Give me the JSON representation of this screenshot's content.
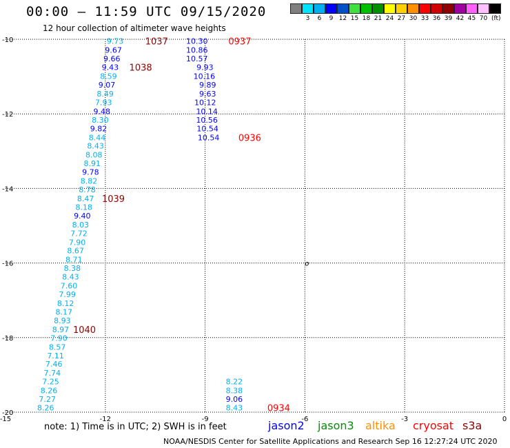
{
  "header": {
    "title": "00:00 – 11:59 UTC 09/15/2020",
    "subtitle": "12 hour collection of altimeter wave heights"
  },
  "colorbar": {
    "unit": "(ft)",
    "bins": [
      {
        "color": "#808080",
        "label": ""
      },
      {
        "color": "#00e5ff",
        "label": "3"
      },
      {
        "color": "#00b0f0",
        "label": "6"
      },
      {
        "color": "#0000ff",
        "label": "9"
      },
      {
        "color": "#0050c8",
        "label": "12"
      },
      {
        "color": "#40e040",
        "label": "15"
      },
      {
        "color": "#00c000",
        "label": "18"
      },
      {
        "color": "#009000",
        "label": "21"
      },
      {
        "color": "#ffff00",
        "label": "24"
      },
      {
        "color": "#ffd000",
        "label": "27"
      },
      {
        "color": "#ff9000",
        "label": "30"
      },
      {
        "color": "#ff0000",
        "label": "33"
      },
      {
        "color": "#d00000",
        "label": "36"
      },
      {
        "color": "#900000",
        "label": "39"
      },
      {
        "color": "#a000a0",
        "label": "42"
      },
      {
        "color": "#ff60ff",
        "label": "45"
      },
      {
        "color": "#ffc0ff",
        "label": "70"
      },
      {
        "color": "#000000",
        "label": ""
      }
    ]
  },
  "map": {
    "lon_ticks": [
      {
        "value": -15,
        "label": "-15"
      },
      {
        "value": -12,
        "label": "-12"
      },
      {
        "value": -9,
        "label": "-9"
      },
      {
        "value": -6,
        "label": "-6"
      },
      {
        "value": -3,
        "label": "-3"
      },
      {
        "value": 0,
        "label": "0"
      }
    ],
    "lat_ticks": [
      {
        "value": -10,
        "label": "-10"
      },
      {
        "value": -12,
        "label": "-12"
      },
      {
        "value": -14,
        "label": "-14"
      },
      {
        "value": -16,
        "label": "-16"
      },
      {
        "value": -18,
        "label": "-18"
      },
      {
        "value": -20,
        "label": "-20"
      }
    ],
    "island_label": "o",
    "observations": [
      {
        "lon": -11.45,
        "lat": -10.05,
        "text": "9.73",
        "color": "#00b0f0"
      },
      {
        "lon": -11.5,
        "lat": -10.29,
        "text": "9.67",
        "color": "#0000ff"
      },
      {
        "lon": -11.55,
        "lat": -10.52,
        "text": "9.66",
        "color": "#0000ff"
      },
      {
        "lon": -11.6,
        "lat": -10.75,
        "text": "9.43",
        "color": "#0000ff"
      },
      {
        "lon": -11.65,
        "lat": -10.99,
        "text": "8.59",
        "color": "#00b0f0"
      },
      {
        "lon": -11.7,
        "lat": -11.22,
        "text": "9.07",
        "color": "#0000ff"
      },
      {
        "lon": -11.75,
        "lat": -11.46,
        "text": "8.49",
        "color": "#00b0f0"
      },
      {
        "lon": -11.8,
        "lat": -11.69,
        "text": "7.93",
        "color": "#00b0f0"
      },
      {
        "lon": -11.85,
        "lat": -11.93,
        "text": "9.48",
        "color": "#0000ff"
      },
      {
        "lon": -11.9,
        "lat": -12.16,
        "text": "8.30",
        "color": "#00b0f0"
      },
      {
        "lon": -11.95,
        "lat": -12.39,
        "text": "9.82",
        "color": "#0000ff"
      },
      {
        "lon": -11.99,
        "lat": -12.63,
        "text": "8.44",
        "color": "#00b0f0"
      },
      {
        "lon": -12.04,
        "lat": -12.86,
        "text": "8.43",
        "color": "#00b0f0"
      },
      {
        "lon": -12.09,
        "lat": -13.1,
        "text": "8.08",
        "color": "#00b0f0"
      },
      {
        "lon": -12.14,
        "lat": -13.33,
        "text": "8.91",
        "color": "#00b0f0"
      },
      {
        "lon": -12.19,
        "lat": -13.56,
        "text": "9.78",
        "color": "#0000ff"
      },
      {
        "lon": -12.24,
        "lat": -13.8,
        "text": "8.82",
        "color": "#00b0f0"
      },
      {
        "lon": -12.29,
        "lat": -14.03,
        "text": "8.78",
        "color": "#00b0f0"
      },
      {
        "lon": -12.34,
        "lat": -14.27,
        "text": "8.47",
        "color": "#00b0f0"
      },
      {
        "lon": -12.39,
        "lat": -14.5,
        "text": "8.18",
        "color": "#00b0f0"
      },
      {
        "lon": -12.44,
        "lat": -14.73,
        "text": "9.40",
        "color": "#0000ff"
      },
      {
        "lon": -12.49,
        "lat": -14.97,
        "text": "8.03",
        "color": "#00b0f0"
      },
      {
        "lon": -12.54,
        "lat": -15.2,
        "text": "7.72",
        "color": "#00b0f0"
      },
      {
        "lon": -12.59,
        "lat": -15.44,
        "text": "7.90",
        "color": "#00b0f0"
      },
      {
        "lon": -12.64,
        "lat": -15.67,
        "text": "8.67",
        "color": "#00b0f0"
      },
      {
        "lon": -12.69,
        "lat": -15.91,
        "text": "8.71",
        "color": "#00b0f0"
      },
      {
        "lon": -12.74,
        "lat": -16.14,
        "text": "8.38",
        "color": "#00b0f0"
      },
      {
        "lon": -12.79,
        "lat": -16.37,
        "text": "8.43",
        "color": "#00b0f0"
      },
      {
        "lon": -12.84,
        "lat": -16.61,
        "text": "7.60",
        "color": "#00b0f0"
      },
      {
        "lon": -12.89,
        "lat": -16.84,
        "text": "7.99",
        "color": "#00b0f0"
      },
      {
        "lon": -12.94,
        "lat": -17.08,
        "text": "8.12",
        "color": "#00b0f0"
      },
      {
        "lon": -12.99,
        "lat": -17.31,
        "text": "8.17",
        "color": "#00b0f0"
      },
      {
        "lon": -13.04,
        "lat": -17.54,
        "text": "8.93",
        "color": "#00b0f0"
      },
      {
        "lon": -13.09,
        "lat": -17.78,
        "text": "8.97",
        "color": "#00b0f0"
      },
      {
        "lon": -13.14,
        "lat": -18.01,
        "text": "7.90",
        "color": "#00b0f0"
      },
      {
        "lon": -13.19,
        "lat": -18.25,
        "text": "8.57",
        "color": "#00b0f0"
      },
      {
        "lon": -13.24,
        "lat": -18.48,
        "text": "7.11",
        "color": "#00b0f0"
      },
      {
        "lon": -13.29,
        "lat": -18.71,
        "text": "7.46",
        "color": "#00b0f0"
      },
      {
        "lon": -13.34,
        "lat": -18.95,
        "text": "7.74",
        "color": "#00b0f0"
      },
      {
        "lon": -13.39,
        "lat": -19.18,
        "text": "7.25",
        "color": "#00b0f0"
      },
      {
        "lon": -13.44,
        "lat": -19.42,
        "text": "8.26",
        "color": "#00b0f0"
      },
      {
        "lon": -13.49,
        "lat": -19.65,
        "text": "7.27",
        "color": "#00b0f0"
      },
      {
        "lon": -13.54,
        "lat": -19.88,
        "text": "8.26",
        "color": "#00b0f0"
      },
      {
        "lon": -8.92,
        "lat": -10.05,
        "text": "10.30",
        "color": "#0000ff"
      },
      {
        "lon": -8.92,
        "lat": -10.29,
        "text": "10.86",
        "color": "#0000ff"
      },
      {
        "lon": -8.92,
        "lat": -10.52,
        "text": "10.57",
        "color": "#0000ff"
      },
      {
        "lon": -8.75,
        "lat": -10.75,
        "text": "9.93",
        "color": "#0000ff"
      },
      {
        "lon": -8.7,
        "lat": -10.99,
        "text": "10.16",
        "color": "#0000ff"
      },
      {
        "lon": -8.67,
        "lat": -11.22,
        "text": "9.89",
        "color": "#0000ff"
      },
      {
        "lon": -8.67,
        "lat": -11.46,
        "text": "9.63",
        "color": "#0000ff"
      },
      {
        "lon": -8.67,
        "lat": -11.69,
        "text": "10.12",
        "color": "#0000ff"
      },
      {
        "lon": -8.62,
        "lat": -11.93,
        "text": "10.14",
        "color": "#0000ff"
      },
      {
        "lon": -8.62,
        "lat": -12.16,
        "text": "10.56",
        "color": "#0000ff"
      },
      {
        "lon": -8.6,
        "lat": -12.39,
        "text": "10.54",
        "color": "#0000ff"
      },
      {
        "lon": -8.57,
        "lat": -12.63,
        "text": "10.54",
        "color": "#0000ff"
      },
      {
        "lon": -7.87,
        "lat": -19.18,
        "text": "8.22",
        "color": "#00b0f0"
      },
      {
        "lon": -7.87,
        "lat": -19.42,
        "text": "8.38",
        "color": "#00b0f0"
      },
      {
        "lon": -7.87,
        "lat": -19.65,
        "text": "9.06",
        "color": "#0000ff"
      },
      {
        "lon": -7.87,
        "lat": -19.88,
        "text": "8.43",
        "color": "#00b0f0"
      }
    ],
    "time_labels": [
      {
        "lon": -10.8,
        "lat": -10.05,
        "text": "1037",
        "color": "#900000"
      },
      {
        "lon": -11.28,
        "lat": -10.75,
        "text": "1038",
        "color": "#900000"
      },
      {
        "lon": -12.1,
        "lat": -14.27,
        "text": "1039",
        "color": "#900000"
      },
      {
        "lon": -12.97,
        "lat": -17.78,
        "text": "1040",
        "color": "#900000"
      },
      {
        "lon": -8.3,
        "lat": -10.05,
        "text": "0937",
        "color": "#ff0000"
      },
      {
        "lon": -8.0,
        "lat": -12.63,
        "text": "0936",
        "color": "#ff0000"
      },
      {
        "lon": -7.13,
        "lat": -19.88,
        "text": "0934",
        "color": "#ff0000"
      }
    ]
  },
  "footer": {
    "note": "note:  1) Time is in UTC;  2) SWH is in feet",
    "satellites": [
      {
        "name": "jason2",
        "color": "#0000ff"
      },
      {
        "name": "jason3",
        "color": "#009000"
      },
      {
        "name": "altika",
        "color": "#ff9000"
      },
      {
        "name": "cryosat",
        "color": "#ff0000"
      },
      {
        "name": "s3a",
        "color": "#900000"
      }
    ],
    "credit": "NOAA/NESDIS Center for Satellite Applications and Research    Sep 16 12:27:24 UTC 2020"
  }
}
